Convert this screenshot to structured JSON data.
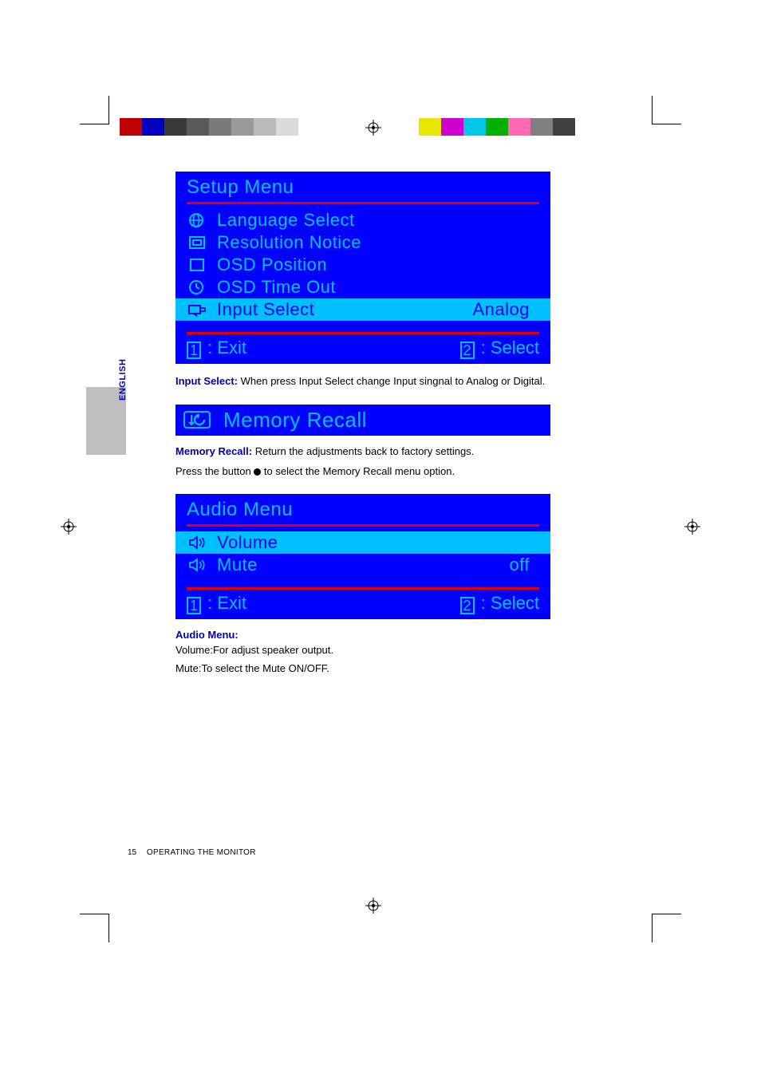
{
  "printer": {
    "left_bar_colors": [
      "#c00000",
      "#0000c0",
      "#3a3a3a",
      "#5a5a5a",
      "#7a7a7a",
      "#9a9a9a",
      "#bababa",
      "#dadada",
      "#ffffff"
    ],
    "right_bar_colors": [
      "#e6e600",
      "#d000d0",
      "#00c8e6",
      "#00b000",
      "#ff69b4",
      "#808080",
      "#404040"
    ]
  },
  "side_tab": {
    "label": "ENGLISH"
  },
  "setup_menu": {
    "title": "Setup Menu",
    "items": [
      {
        "icon": "globe",
        "label": "Language Select",
        "value": "",
        "selected": false
      },
      {
        "icon": "screen",
        "label": "Resolution Notice",
        "value": "",
        "selected": false
      },
      {
        "icon": "box",
        "label": "OSD Position",
        "value": "",
        "selected": false
      },
      {
        "icon": "clock",
        "label": "OSD Time Out",
        "value": "",
        "selected": false
      },
      {
        "icon": "input",
        "label": "Input Select",
        "value": "Analog",
        "selected": true
      }
    ],
    "footer_exit_key": "1",
    "footer_exit_label": ": Exit",
    "footer_select_key": "2",
    "footer_select_label": ": Select"
  },
  "input_select_desc": {
    "heading": "Input Select:",
    "text": " When press Input Select change Input singnal to Analog or Digital."
  },
  "memory_recall": {
    "title": "Memory Recall",
    "desc_heading": "Memory Recall:",
    "desc_text": " Return the adjustments back to factory settings.",
    "press_prefix": "Press the button ",
    "press_suffix": " to select the Memory Recall menu option."
  },
  "audio_menu": {
    "title": "Audio Menu",
    "items": [
      {
        "icon": "speaker",
        "label": "Volume",
        "value": "",
        "selected": true
      },
      {
        "icon": "speaker",
        "label": "Mute",
        "value": "off",
        "selected": false
      }
    ],
    "footer_exit_key": "1",
    "footer_exit_label": ": Exit",
    "footer_select_key": "2",
    "footer_select_label": ": Select"
  },
  "audio_desc": {
    "heading": "Audio Menu:",
    "line1": "Volume:For adjust speaker output.",
    "line2": "Mute:To select the Mute ON/OFF."
  },
  "footer": {
    "page_number": "15",
    "title": "OPERATING THE MONITOR"
  }
}
